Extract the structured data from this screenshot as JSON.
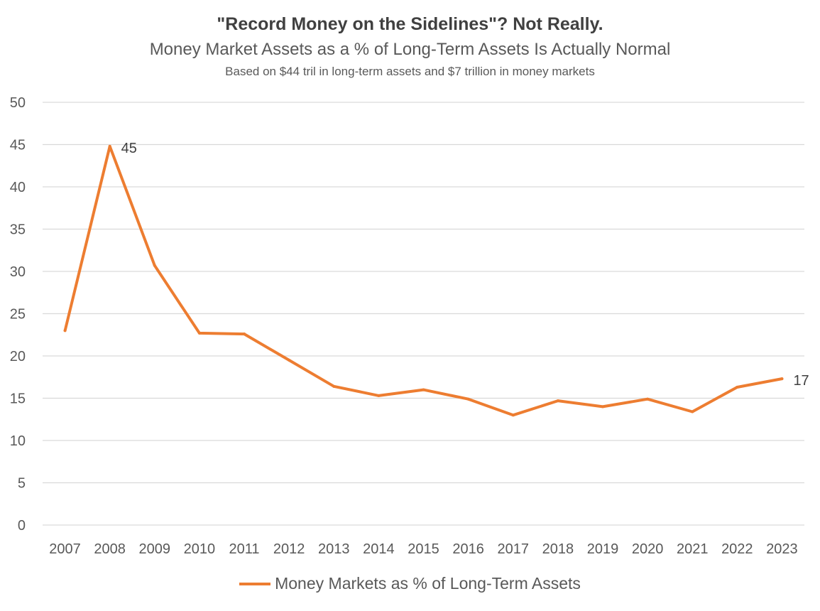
{
  "chart_data": {
    "type": "line",
    "title": "\"Record Money on the Sidelines\"? Not Really.",
    "subtitle": "Money Market Assets as a % of Long-Term Assets Is Actually Normal",
    "note": "Based on $44 tril in long-term assets and $7 trillion in money markets",
    "categories": [
      "2007",
      "2008",
      "2009",
      "2010",
      "2011",
      "2012",
      "2013",
      "2014",
      "2015",
      "2016",
      "2017",
      "2018",
      "2019",
      "2020",
      "2021",
      "2022",
      "2023"
    ],
    "series": [
      {
        "name": "Money Markets as % of Long-Term Assets",
        "color": "#ED7D31",
        "values": [
          23,
          44.8,
          30.7,
          22.7,
          22.6,
          19.5,
          16.4,
          15.3,
          16.0,
          14.9,
          13.0,
          14.7,
          14.0,
          14.9,
          13.4,
          16.3,
          17.3
        ]
      }
    ],
    "data_labels": [
      {
        "category": "2008",
        "text": "45"
      },
      {
        "category": "2023",
        "text": "17"
      }
    ],
    "ylim": [
      0,
      50
    ],
    "yticks": [
      "0",
      "5",
      "10",
      "15",
      "20",
      "25",
      "30",
      "35",
      "40",
      "45",
      "50"
    ],
    "grid": true,
    "legend_position": "bottom"
  }
}
